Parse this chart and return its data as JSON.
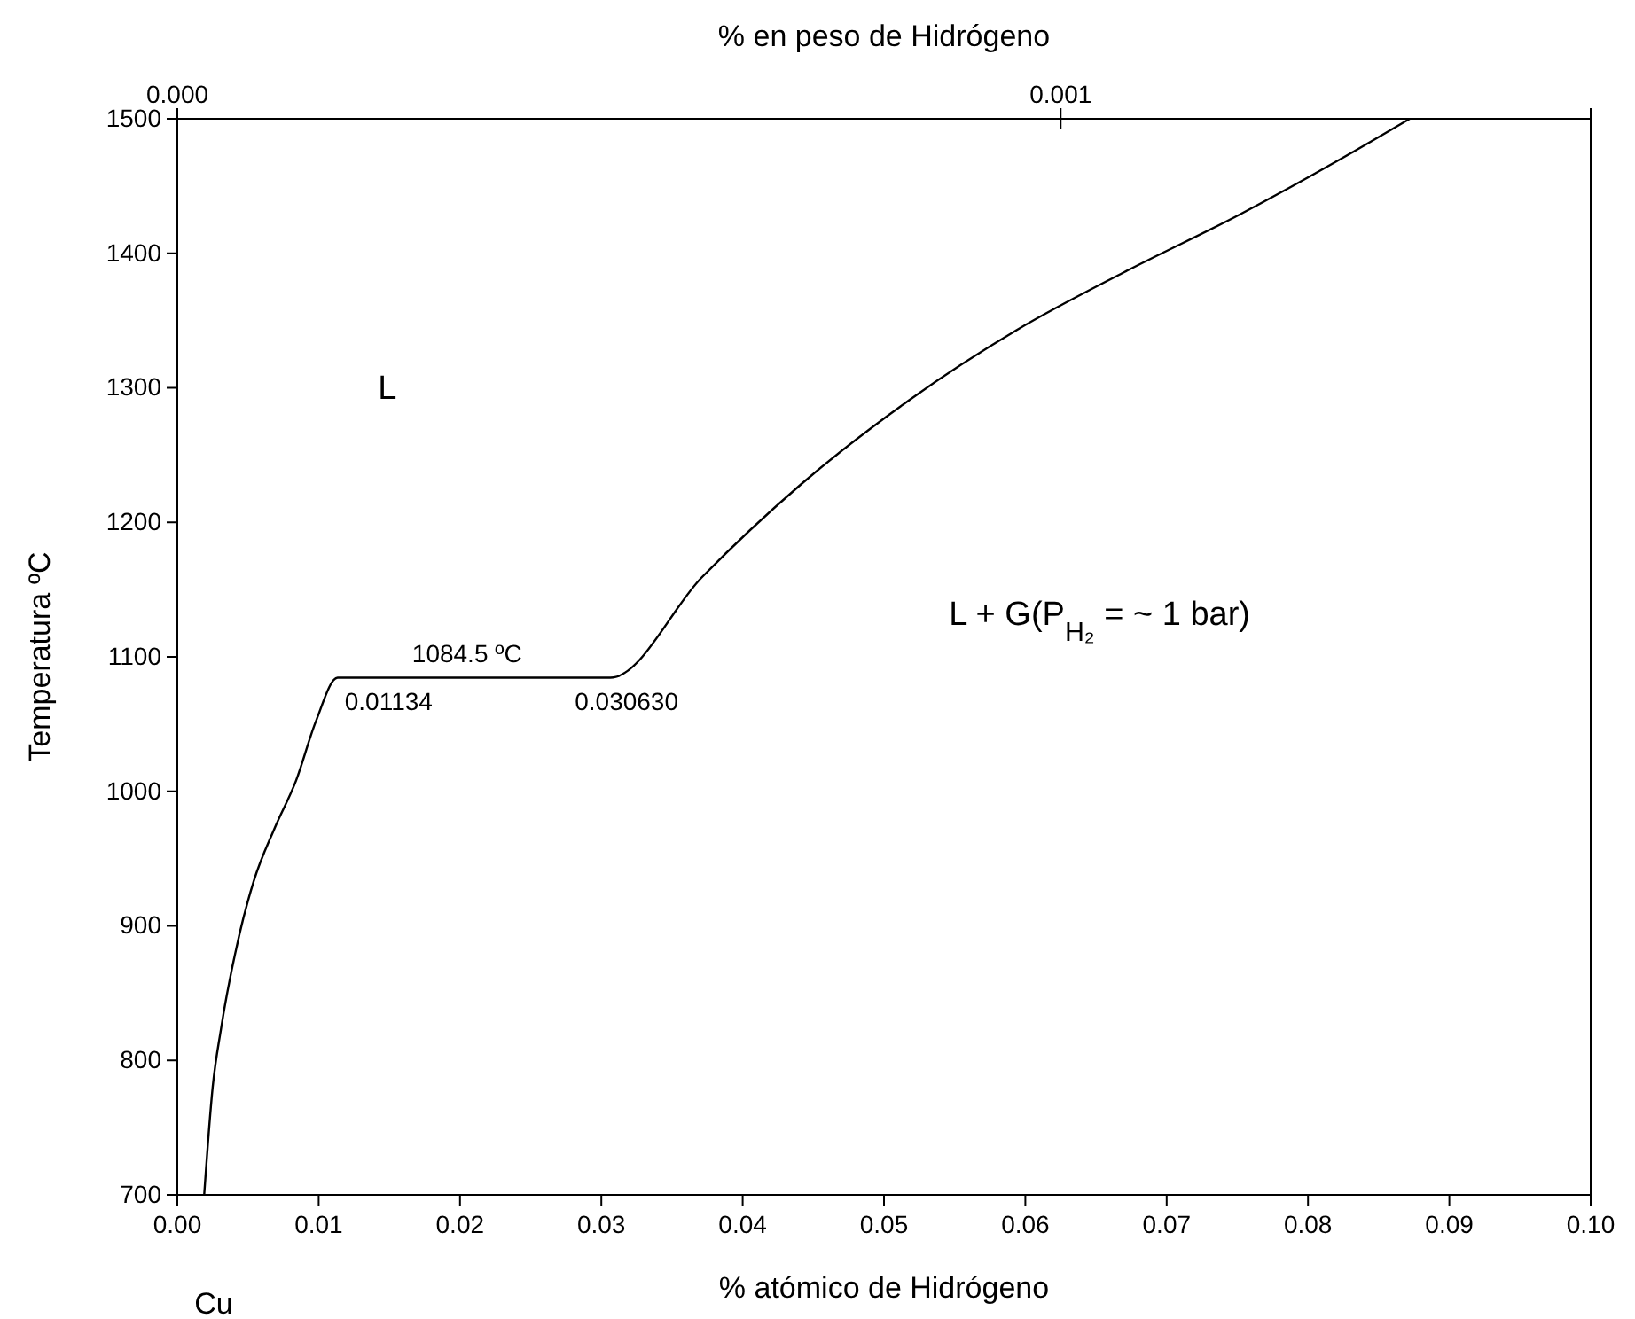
{
  "chart_data": {
    "type": "line",
    "xlabel": "% atómico de Hidrógeno",
    "ylabel": "Temperatura ºC",
    "x2label": "% en peso de Hidrógeno",
    "xlim": [
      0,
      0.1
    ],
    "xticks": [
      {
        "value": 0,
        "label": "0.00"
      },
      {
        "value": 0.01,
        "label": "0.01"
      },
      {
        "value": 0.02,
        "label": "0.02"
      },
      {
        "value": 0.03,
        "label": "0.03"
      },
      {
        "value": 0.04,
        "label": "0.04"
      },
      {
        "value": 0.05,
        "label": "0.05"
      },
      {
        "value": 0.06,
        "label": "0.06"
      },
      {
        "value": 0.07,
        "label": "0.07"
      },
      {
        "value": 0.08,
        "label": "0.08"
      },
      {
        "value": 0.09,
        "label": "0.09"
      },
      {
        "value": 0.1,
        "label": "0.10"
      }
    ],
    "x2lim": [
      0,
      0.0016
    ],
    "x2ticks": [
      {
        "value": 0,
        "label": "0.000"
      },
      {
        "value": 0.001,
        "label": "0.001"
      }
    ],
    "ylim": [
      700,
      1500
    ],
    "yticks": [
      700,
      800,
      900,
      1000,
      1100,
      1200,
      1300,
      1400,
      1500
    ],
    "series": [
      {
        "color": "#000000",
        "x": [
          0.0019,
          0.0025,
          0.0031,
          0.0044,
          0.0054,
          0.0069,
          0.0084,
          0.0098,
          0.01134,
          0.03063,
          0.0371,
          0.0441,
          0.0518,
          0.0594,
          0.067,
          0.0752,
          0.0823,
          0.0872
        ],
        "values": [
          700,
          780,
          824,
          894,
          933,
          973,
          1008,
          1052,
          1084.5,
          1084.5,
          1159,
          1228,
          1291,
          1343,
          1386,
          1429,
          1470,
          1500
        ]
      }
    ],
    "annotations": [
      {
        "text": "1084.5 ºC",
        "x": 0.0205,
        "y": 1084.5
      },
      {
        "text": "0.01134",
        "x": 0.01134,
        "y": 1084.5
      },
      {
        "text": "0.030630",
        "x": 0.03063,
        "y": 1084.5
      },
      "L",
      "L + G(P$_{H₂}$ = ~ 1 bar)",
      "Cu"
    ],
    "grid": false,
    "marker": "none",
    "line_style": "solid"
  }
}
